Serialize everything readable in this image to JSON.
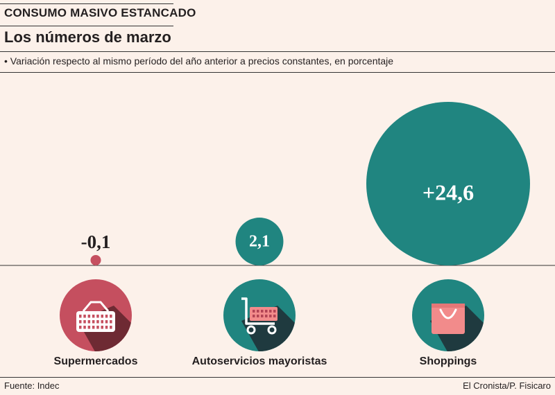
{
  "header": {
    "kicker": "CONSUMO MASIVO ESTANCADO",
    "title": "Los números de marzo",
    "subtitle": "• Variación respecto al mismo período del año anterior a precios constantes, en porcentaje"
  },
  "footer": {
    "source": "Fuente: Indec",
    "credit": "El Cronista/P. Fisicaro"
  },
  "colors": {
    "teal": "#208580",
    "rose": "#c54f5f",
    "shadow": "#6e2a33",
    "shadow_teal": "#1f3a3f",
    "pink": "#f28b8b",
    "background": "#fcf1ea"
  },
  "chart_data": {
    "type": "bubble",
    "title": "Los números de marzo",
    "categories": [
      "Supermercados",
      "Autoservicios mayoristas",
      "Shoppings"
    ],
    "values": [
      -0.1,
      2.1,
      24.6
    ],
    "value_labels": [
      "-0,1",
      "2,1",
      "+24,6"
    ],
    "icons": [
      "shopping-basket-icon",
      "shopping-cart-icon",
      "shopping-bag-icon"
    ]
  }
}
